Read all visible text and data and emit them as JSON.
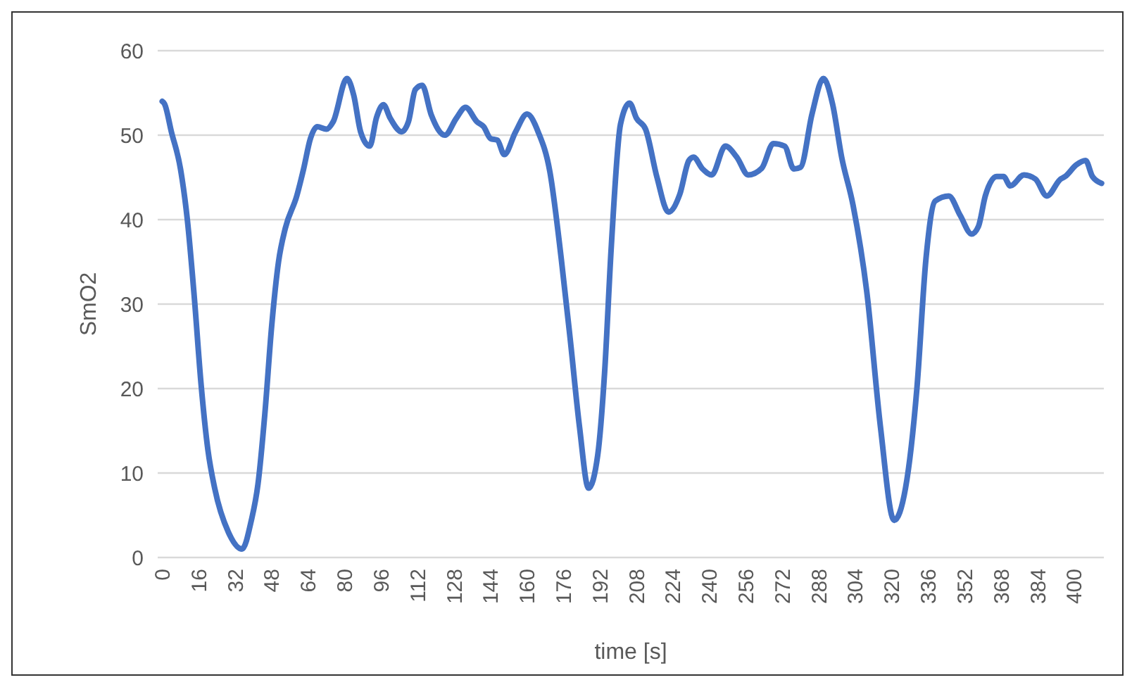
{
  "chart_data": {
    "type": "line",
    "xlabel": "time [s]",
    "ylabel": "SmO2",
    "xlim": [
      -2,
      413
    ],
    "xticks": [
      0,
      16,
      32,
      48,
      64,
      80,
      96,
      112,
      128,
      144,
      160,
      176,
      192,
      208,
      224,
      240,
      256,
      272,
      288,
      304,
      320,
      336,
      352,
      368,
      384,
      400
    ],
    "ylim": [
      0,
      60
    ],
    "yticks": [
      0,
      10,
      20,
      30,
      40,
      50,
      60
    ],
    "grid": "y",
    "marker": "none",
    "line_style": "solid",
    "series": [
      {
        "color": "#4472c4",
        "x": [
          0,
          1,
          4,
          8,
          11,
          14,
          17,
          20,
          23,
          29,
          35,
          39,
          42,
          45,
          48,
          51,
          54,
          59,
          62,
          65,
          68,
          72,
          75,
          81,
          84,
          87,
          91,
          94,
          97,
          100,
          105,
          108,
          111,
          114,
          118,
          124,
          129,
          133,
          138,
          141,
          144,
          147,
          150,
          155,
          160,
          165,
          170,
          175,
          179,
          183,
          187,
          191,
          194,
          197,
          201,
          205,
          208,
          212,
          217,
          222,
          227,
          231,
          233,
          237,
          241,
          247,
          252,
          257,
          263,
          268,
          273,
          277,
          280,
          285,
          290,
          294,
          298,
          303,
          309,
          315,
          321,
          326,
          331,
          335,
          339,
          345,
          350,
          355,
          358,
          361,
          366,
          369,
          372,
          378,
          383,
          388,
          394,
          396,
          401,
          405,
          408,
          412
        ],
        "values": [
          54,
          53.7,
          50.4,
          46,
          40,
          31,
          20.6,
          12.8,
          8.2,
          3,
          1,
          4.3,
          8.7,
          17,
          27.4,
          35,
          39,
          42.8,
          46,
          49.6,
          51,
          50.7,
          51.6,
          56.7,
          54.7,
          50.4,
          48.7,
          52.1,
          53.6,
          52,
          50.4,
          51.6,
          55.4,
          55.9,
          52.4,
          50,
          52,
          53.3,
          51.6,
          51,
          49.6,
          49.4,
          47.7,
          50.4,
          52.5,
          50.3,
          45.7,
          35.4,
          25.7,
          15.5,
          8.2,
          12.1,
          21.8,
          37,
          51.3,
          53.8,
          52,
          50.7,
          45,
          40.9,
          43,
          47,
          47.4,
          46,
          45.3,
          48.7,
          47.4,
          45.3,
          46.1,
          49,
          48.7,
          46,
          46.2,
          52.5,
          56.7,
          53.7,
          47.4,
          41.7,
          31.5,
          15.5,
          4.4,
          8.2,
          20,
          35.4,
          42.2,
          42.8,
          40.5,
          38.3,
          39.2,
          42.8,
          45.1,
          45.1,
          44,
          45.3,
          44.8,
          42.8,
          44.8,
          45.1,
          46.5,
          47,
          45.1,
          44.3
        ]
      }
    ]
  }
}
